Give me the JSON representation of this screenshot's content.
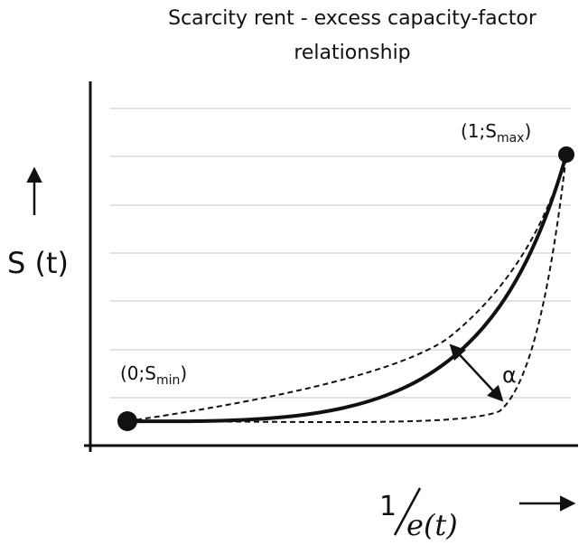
{
  "header": {
    "title_lines": [
      "Scarcity rent - excess capacity-factor relationship"
    ]
  },
  "axes": {
    "y_label": "S (t)",
    "x_label": {
      "numerator": "1",
      "denominator": "e(t)"
    }
  },
  "points": [
    {
      "prefix": "(0;S",
      "sub": "min",
      "suffix": ")"
    },
    {
      "prefix": "(1;S",
      "sub": "max",
      "suffix": ")"
    }
  ],
  "angle_label": "α"
}
